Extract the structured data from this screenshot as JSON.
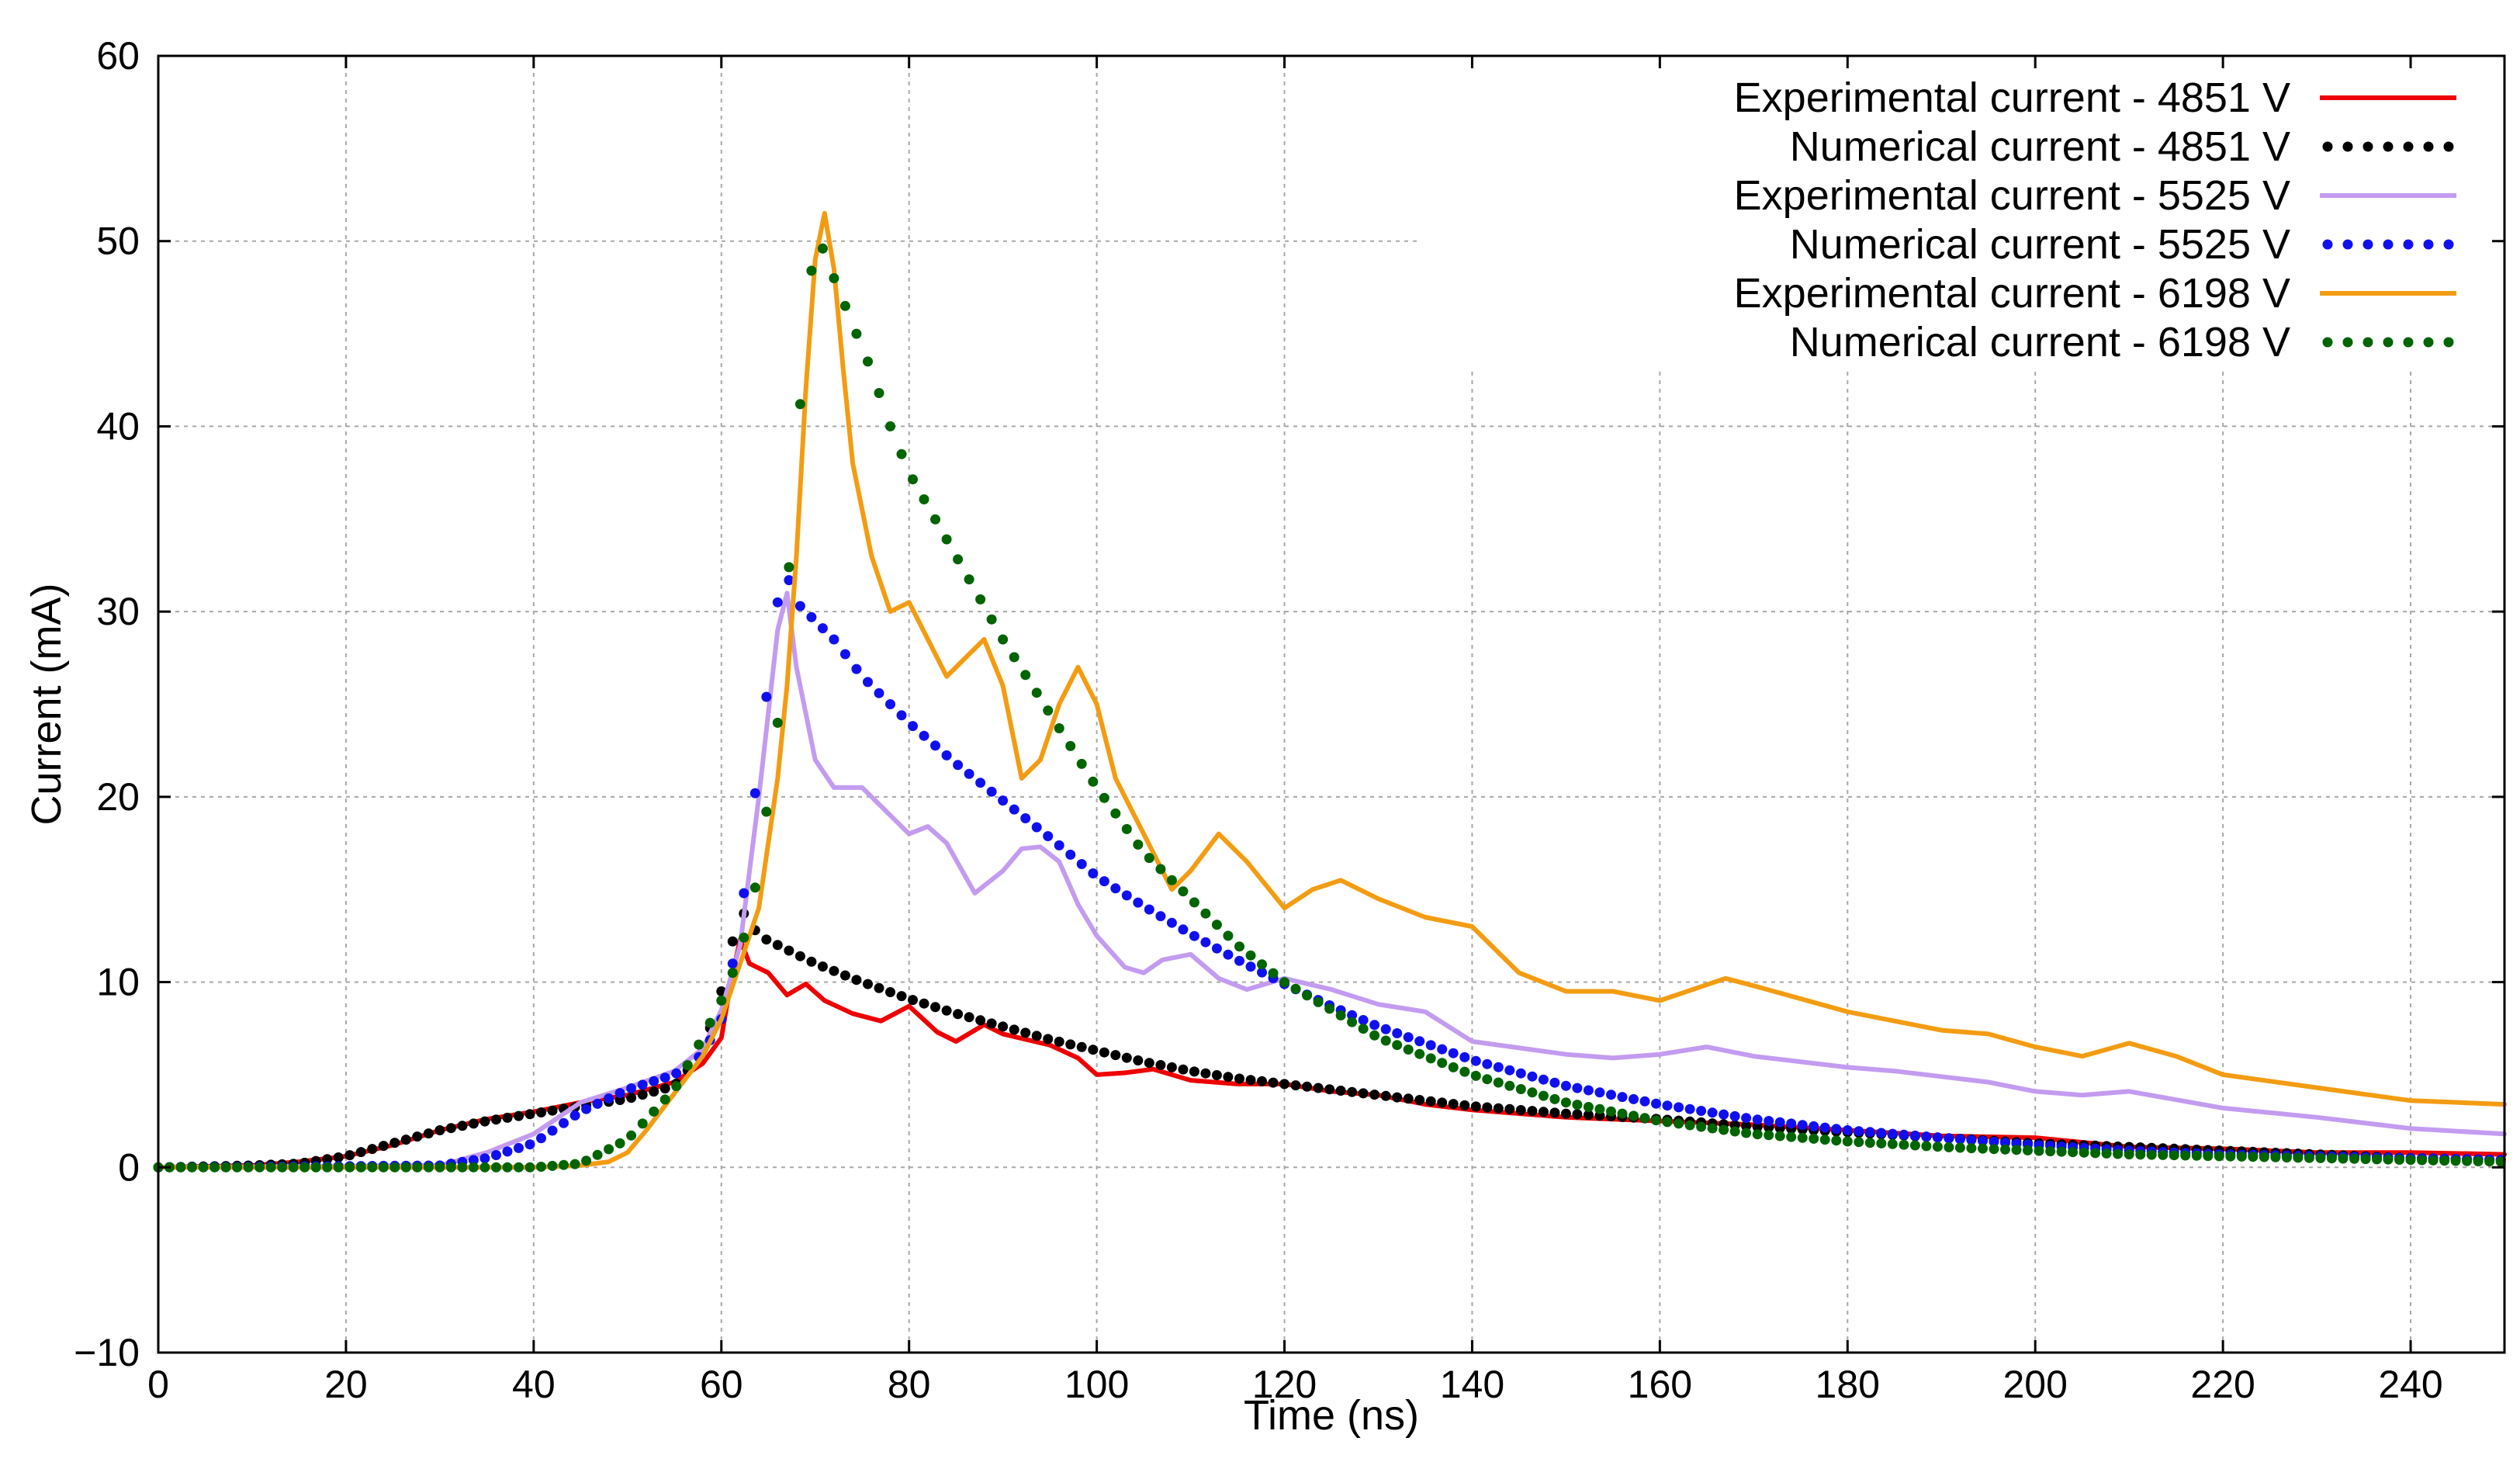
{
  "chart_data": {
    "type": "line",
    "title": "",
    "xlabel": "Time (ns)",
    "ylabel": "Current (mA)",
    "xlim": [
      0,
      250
    ],
    "ylim": [
      -10,
      60
    ],
    "xticks": [
      0,
      20,
      40,
      60,
      80,
      100,
      120,
      140,
      160,
      180,
      200,
      220,
      240
    ],
    "yticks": [
      -10,
      0,
      10,
      20,
      30,
      40,
      50,
      60
    ],
    "x_tick_labels": [
      "0",
      "20",
      "40",
      "60",
      "80",
      "100",
      "120",
      "140",
      "160",
      "180",
      "200",
      "220",
      "240"
    ],
    "y_tick_labels": [
      "−10",
      "0",
      "10",
      "20",
      "30",
      "40",
      "50",
      "60"
    ],
    "grid": true,
    "legend_position": "top-right",
    "series": [
      {
        "name": "Experimental current - 4851 V",
        "style": "solid",
        "color": "#ee0000",
        "x": [
          0,
          10,
          15,
          20,
          25,
          30,
          35,
          40,
          45,
          50,
          55,
          58,
          60,
          61,
          62,
          63,
          65,
          67,
          69,
          71,
          74,
          77,
          80,
          83,
          85,
          88,
          90,
          95,
          98,
          100,
          103,
          106,
          110,
          115,
          120,
          125,
          130,
          135,
          140,
          150,
          160,
          170,
          180,
          190,
          200,
          210,
          220,
          230,
          240,
          250
        ],
        "y": [
          0,
          0.1,
          0.3,
          0.6,
          1.2,
          2.0,
          2.6,
          3.0,
          3.5,
          3.9,
          4.6,
          5.6,
          7.0,
          10.0,
          12.3,
          11.0,
          10.5,
          9.3,
          9.9,
          9.0,
          8.3,
          7.9,
          8.7,
          7.3,
          6.8,
          7.7,
          7.2,
          6.6,
          5.9,
          5.0,
          5.1,
          5.3,
          4.7,
          4.5,
          4.5,
          4.1,
          3.9,
          3.4,
          3.1,
          2.7,
          2.5,
          2.3,
          2.0,
          1.7,
          1.6,
          1.1,
          1.0,
          0.8,
          0.8,
          0.7
        ]
      },
      {
        "name": "Numerical current - 4851 V",
        "style": "dotted",
        "color": "#000000",
        "x": [
          0,
          10,
          15,
          20,
          25,
          30,
          35,
          40,
          45,
          50,
          55,
          58,
          60,
          62,
          64,
          66,
          70,
          75,
          80,
          85,
          90,
          95,
          100,
          105,
          110,
          115,
          120,
          125,
          130,
          140,
          150,
          160,
          170,
          180,
          190,
          200,
          210,
          220,
          230,
          240,
          250
        ],
        "y": [
          0,
          0.1,
          0.2,
          0.6,
          1.3,
          2.0,
          2.5,
          2.9,
          3.3,
          3.7,
          4.4,
          6.2,
          9.5,
          14.0,
          12.5,
          12.0,
          11.0,
          10.0,
          9.1,
          8.3,
          7.6,
          6.9,
          6.3,
          5.7,
          5.2,
          4.8,
          4.5,
          4.2,
          3.9,
          3.3,
          2.9,
          2.6,
          2.2,
          1.9,
          1.6,
          1.3,
          1.1,
          0.9,
          0.7,
          0.5,
          0.4
        ]
      },
      {
        "name": "Experimental current - 5525 V",
        "style": "solid",
        "color": "#c39bf0",
        "x": [
          0,
          30,
          35,
          40,
          45,
          50,
          55,
          58,
          60,
          62,
          64,
          66,
          67,
          68,
          70,
          72,
          75,
          78,
          80,
          82,
          84,
          87,
          90,
          92,
          94,
          96,
          98,
          100,
          103,
          105,
          107,
          110,
          113,
          116,
          120,
          125,
          130,
          135,
          140,
          150,
          155,
          160,
          165,
          170,
          180,
          185,
          190,
          195,
          200,
          205,
          210,
          220,
          230,
          240,
          250
        ],
        "y": [
          0,
          0.1,
          0.8,
          1.8,
          3.5,
          4.3,
          5.2,
          6.4,
          8.5,
          12.0,
          20.0,
          29.0,
          31.0,
          27.0,
          22.0,
          20.5,
          20.5,
          19.0,
          18.0,
          18.4,
          17.5,
          14.8,
          16.0,
          17.2,
          17.3,
          16.5,
          14.2,
          12.5,
          10.8,
          10.5,
          11.2,
          11.5,
          10.2,
          9.6,
          10.2,
          9.6,
          8.8,
          8.4,
          6.8,
          6.1,
          5.9,
          6.1,
          6.5,
          6.0,
          5.4,
          5.2,
          4.9,
          4.6,
          4.1,
          3.9,
          4.1,
          3.2,
          2.7,
          2.1,
          1.8
        ]
      },
      {
        "name": "Numerical current - 5525 V",
        "style": "dotted",
        "color": "#1010ee",
        "x": [
          0,
          30,
          35,
          40,
          45,
          50,
          55,
          58,
          60,
          62,
          64,
          66,
          67,
          68,
          70,
          72,
          75,
          80,
          85,
          90,
          95,
          100,
          105,
          110,
          115,
          120,
          125,
          130,
          140,
          150,
          160,
          170,
          180,
          190,
          200,
          210,
          220,
          230,
          240,
          250
        ],
        "y": [
          0,
          0.1,
          0.5,
          1.3,
          3.0,
          4.2,
          5.0,
          6.1,
          8.0,
          13.0,
          22.0,
          30.5,
          32.0,
          30.5,
          29.5,
          28.5,
          26.5,
          24.0,
          21.8,
          19.8,
          17.8,
          15.7,
          14.1,
          12.6,
          11.2,
          9.9,
          8.7,
          7.6,
          5.8,
          4.4,
          3.4,
          2.6,
          2.0,
          1.6,
          1.2,
          0.9,
          0.7,
          0.6,
          0.5,
          0.4
        ]
      },
      {
        "name": "Experimental current - 6198 V",
        "style": "solid",
        "color": "#f39c12",
        "x": [
          0,
          40,
          45,
          48,
          50,
          52,
          55,
          58,
          60,
          62,
          64,
          66,
          67,
          68,
          69,
          70,
          71,
          72,
          73,
          74,
          76,
          78,
          80,
          82,
          84,
          86,
          88,
          90,
          92,
          94,
          96,
          98,
          100,
          102,
          105,
          108,
          110,
          113,
          116,
          120,
          123,
          126,
          130,
          135,
          140,
          145,
          150,
          155,
          160,
          167,
          170,
          180,
          190,
          195,
          200,
          205,
          210,
          215,
          220,
          230,
          240,
          250
        ],
        "y": [
          0,
          0,
          0.1,
          0.3,
          0.8,
          2.0,
          4.0,
          6.0,
          8.0,
          11.0,
          14.0,
          21.0,
          26.0,
          33.0,
          42.0,
          49.0,
          51.5,
          48.5,
          43.0,
          38.0,
          33.0,
          30.0,
          30.5,
          28.5,
          26.5,
          27.5,
          28.5,
          26.0,
          21.0,
          22.0,
          25.0,
          27.0,
          25.0,
          21.0,
          18.0,
          15.0,
          16.0,
          18.0,
          16.5,
          14.0,
          15.0,
          15.5,
          14.5,
          13.5,
          13.0,
          10.5,
          9.5,
          9.5,
          9.0,
          10.2,
          9.8,
          8.4,
          7.4,
          7.2,
          6.5,
          6.0,
          6.7,
          6.0,
          5.0,
          4.3,
          3.6,
          3.4
        ]
      },
      {
        "name": "Numerical current - 6198 V",
        "style": "dotted",
        "color": "#006400",
        "x": [
          0,
          40,
          45,
          50,
          55,
          58,
          60,
          62,
          64,
          66,
          68,
          69,
          70,
          71,
          72,
          74,
          76,
          78,
          80,
          85,
          90,
          95,
          100,
          105,
          110,
          115,
          120,
          125,
          130,
          140,
          150,
          160,
          170,
          180,
          190,
          200,
          210,
          220,
          230,
          240,
          250
        ],
        "y": [
          0,
          0,
          0.2,
          1.5,
          4.2,
          7.0,
          9.0,
          11.5,
          16.0,
          24.0,
          38.0,
          46.0,
          50.0,
          49.5,
          48.0,
          45.5,
          43.0,
          40.0,
          37.5,
          33.0,
          28.5,
          24.5,
          20.5,
          17.0,
          14.5,
          12.0,
          10.0,
          8.5,
          7.0,
          5.0,
          3.5,
          2.5,
          1.8,
          1.4,
          1.1,
          0.9,
          0.7,
          0.6,
          0.5,
          0.4,
          0.3
        ]
      }
    ]
  }
}
